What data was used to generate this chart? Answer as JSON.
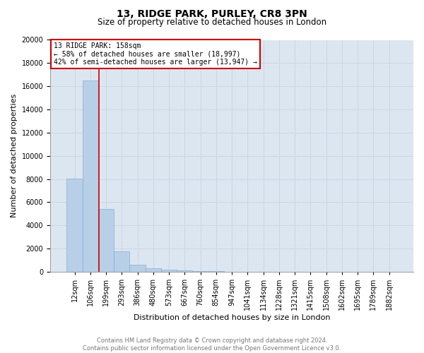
{
  "title1": "13, RIDGE PARK, PURLEY, CR8 3PN",
  "title2": "Size of property relative to detached houses in London",
  "xlabel": "Distribution of detached houses by size in London",
  "ylabel": "Number of detached properties",
  "footer1": "Contains HM Land Registry data © Crown copyright and database right 2024.",
  "footer2": "Contains public sector information licensed under the Open Government Licence v3.0.",
  "property_label": "13 RIDGE PARK: 158sqm",
  "annotation_line1": "← 58% of detached houses are smaller (18,997)",
  "annotation_line2": "42% of semi-detached houses are larger (13,947) →",
  "bar_color": "#b8cfe8",
  "bar_edge_color": "#8aaed0",
  "vline_color": "#cc0000",
  "annotation_box_edge_color": "#cc0000",
  "annotation_box_face_color": "#ffffff",
  "background_color": "#dce6f0",
  "categories": [
    "12sqm",
    "106sqm",
    "199sqm",
    "293sqm",
    "386sqm",
    "480sqm",
    "573sqm",
    "667sqm",
    "760sqm",
    "854sqm",
    "947sqm",
    "1041sqm",
    "1134sqm",
    "1228sqm",
    "1321sqm",
    "1415sqm",
    "1508sqm",
    "1602sqm",
    "1695sqm",
    "1789sqm",
    "1882sqm"
  ],
  "values": [
    8050,
    16500,
    5400,
    1750,
    580,
    270,
    165,
    110,
    75,
    50,
    0,
    0,
    0,
    0,
    0,
    0,
    0,
    0,
    0,
    0,
    0
  ],
  "ylim": [
    0,
    20000
  ],
  "yticks": [
    0,
    2000,
    4000,
    6000,
    8000,
    10000,
    12000,
    14000,
    16000,
    18000,
    20000
  ],
  "grid_color": "#c8d4e4",
  "vline_x": 1.57,
  "title1_fontsize": 10,
  "title2_fontsize": 8.5,
  "axis_label_fontsize": 8,
  "tick_fontsize": 7,
  "annotation_fontsize": 7,
  "footer_fontsize": 6
}
